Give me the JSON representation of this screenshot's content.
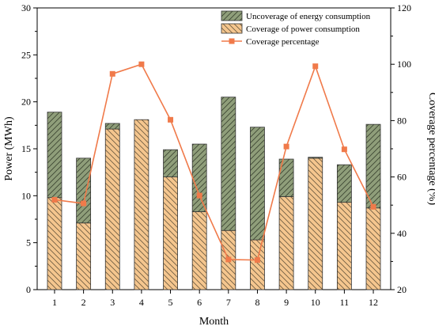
{
  "chart_data": {
    "type": "bar",
    "xlabel": "Month",
    "ylabel": "Power (MWh)",
    "y2label": "Coverage percentage (%)",
    "categories": [
      "1",
      "2",
      "3",
      "4",
      "5",
      "6",
      "7",
      "8",
      "9",
      "10",
      "11",
      "12"
    ],
    "ylim": [
      0,
      30
    ],
    "yticks": [
      0,
      5,
      10,
      15,
      20,
      25,
      30
    ],
    "y2lim": [
      20,
      120
    ],
    "y2ticks": [
      20,
      40,
      60,
      80,
      100,
      120
    ],
    "stacked": true,
    "legend_position": "top-right",
    "series": [
      {
        "name": "Coverage of power consumption",
        "type": "bar",
        "axis": "left",
        "color": "#f5c68e",
        "hatch": "\\\\",
        "values": [
          9.8,
          7.1,
          17.1,
          18.1,
          12.0,
          8.3,
          6.3,
          5.3,
          9.9,
          14.0,
          9.3,
          8.7
        ]
      },
      {
        "name": "Uncoverage of energy consumption",
        "type": "bar",
        "axis": "left",
        "color": "#8f9e7a",
        "hatch": "//",
        "values": [
          9.1,
          6.9,
          0.6,
          0.0,
          2.9,
          7.2,
          14.2,
          12.0,
          4.0,
          0.1,
          4.0,
          8.9
        ]
      },
      {
        "name": "Coverage percentage",
        "type": "line",
        "axis": "right",
        "color": "#f07a4a",
        "marker": "square",
        "values": [
          51.9,
          50.6,
          96.6,
          100.0,
          80.3,
          53.4,
          30.7,
          30.5,
          70.8,
          99.3,
          69.8,
          49.4
        ]
      }
    ]
  }
}
